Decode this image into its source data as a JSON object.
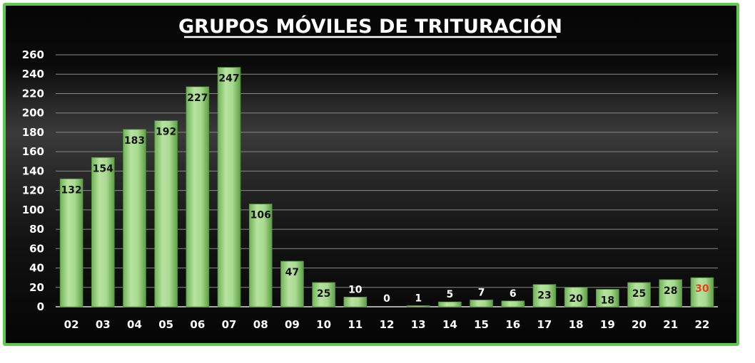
{
  "chart_data": {
    "type": "bar",
    "title": "GRUPOS MÓVILES DE TRITURACIÓN",
    "xlabel": "",
    "ylabel": "",
    "categories": [
      "02",
      "03",
      "04",
      "05",
      "06",
      "07",
      "08",
      "09",
      "10",
      "11",
      "12",
      "13",
      "14",
      "15",
      "16",
      "17",
      "18",
      "19",
      "20",
      "21",
      "22"
    ],
    "values": [
      132,
      154,
      183,
      192,
      227,
      247,
      106,
      47,
      25,
      10,
      0,
      1,
      5,
      7,
      6,
      23,
      20,
      18,
      25,
      28,
      30
    ],
    "data_labels": [
      "132",
      "154",
      "183",
      "192",
      "227",
      "247",
      "106",
      "47",
      "25",
      "10",
      "0",
      "1",
      "5",
      "7",
      "6",
      "23",
      "20",
      "18",
      "25",
      "28",
      "30"
    ],
    "ylim": [
      0,
      260
    ],
    "yticks": [
      "0",
      "20",
      "40",
      "60",
      "80",
      "100",
      "120",
      "140",
      "160",
      "180",
      "200",
      "220",
      "240",
      "260"
    ],
    "grid": true,
    "legend": "none",
    "colors": {
      "bar": "#9fd486",
      "bar_dark": "#5ea245",
      "frame_border": "#5fc84f",
      "label_dark": "#111111",
      "label_light": "#ffffff",
      "label_highlight": "#e8401c"
    },
    "label_colors": [
      "dark",
      "dark",
      "dark",
      "dark",
      "dark",
      "dark",
      "dark",
      "dark",
      "dark",
      "light",
      "light",
      "light",
      "light",
      "light",
      "light",
      "dark",
      "dark",
      "dark",
      "dark",
      "dark",
      "highlight"
    ]
  }
}
